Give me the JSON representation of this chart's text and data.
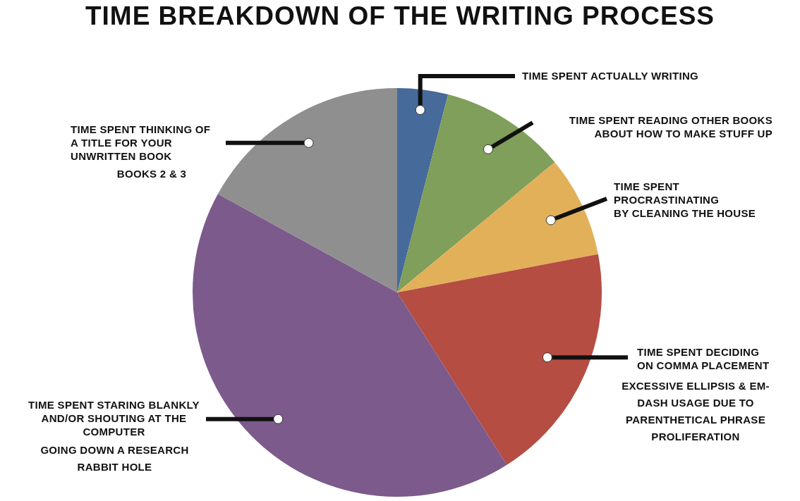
{
  "chart_data": {
    "type": "pie",
    "title": "TIME BREAKDOWN OF THE WRITING PROCESS",
    "categories": [
      "TIME SPENT ACTUALLY WRITING",
      "TIME SPENT READING OTHER BOOKS ABOUT HOW TO MAKE STUFF UP",
      "TIME SPENT PROCRASTINATING BY CLEANING THE HOUSE",
      "TIME SPENT DECIDING ON COMMA PLACEMENT",
      "TIME SPENT STARING BLANKLY AND/OR SHOUTING AT THE COMPUTER",
      "TIME SPENT THINKING OF A TITLE FOR YOUR UNWRITTEN BOOK"
    ],
    "values": [
      4,
      10,
      8,
      19,
      42,
      17
    ],
    "colors": [
      "#466a9a",
      "#7f9f5a",
      "#e3b05a",
      "#b54d43",
      "#7c5a8c",
      "#8f8f8f"
    ],
    "annotations": [
      "EXCESSIVE ELLIPSIS & EM-DASH USAGE DUE TO PARENTHETICAL PHRASE PROLIFERATION",
      "GOING DOWN A RESEARCH RABBIT HOLE",
      "BOOKS 2 & 3"
    ]
  }
}
